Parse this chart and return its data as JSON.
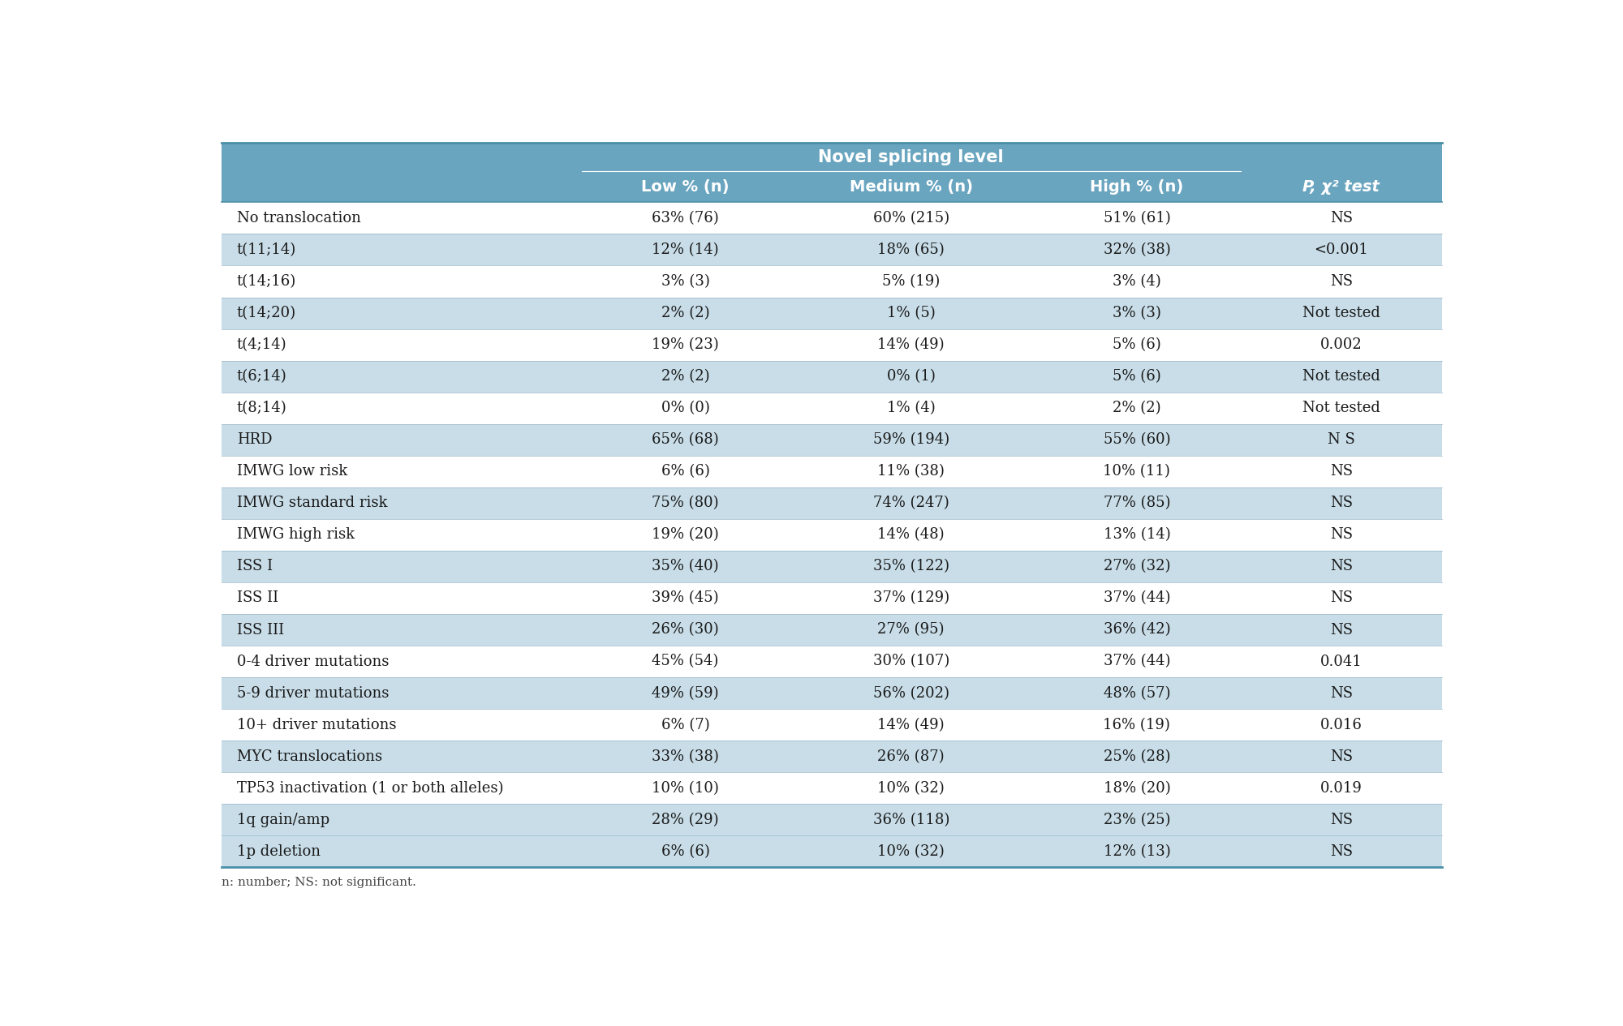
{
  "title": "Novel splicing level",
  "col_headers": [
    "Low % (n)",
    "Medium % (n)",
    "High % (n)",
    "P, χ² test"
  ],
  "rows": [
    [
      "No translocation",
      "63% (76)",
      "60% (215)",
      "51% (61)",
      "NS"
    ],
    [
      "t(11;14)",
      "12% (14)",
      "18% (65)",
      "32% (38)",
      "<0.001"
    ],
    [
      "t(14;16)",
      "3% (3)",
      "5% (19)",
      "3% (4)",
      "NS"
    ],
    [
      "t(14;20)",
      "2% (2)",
      "1% (5)",
      "3% (3)",
      "Not tested"
    ],
    [
      "t(4;14)",
      "19% (23)",
      "14% (49)",
      "5% (6)",
      "0.002"
    ],
    [
      "t(6;14)",
      "2% (2)",
      "0% (1)",
      "5% (6)",
      "Not tested"
    ],
    [
      "t(8;14)",
      "0% (0)",
      "1% (4)",
      "2% (2)",
      "Not tested"
    ],
    [
      "HRD",
      "65% (68)",
      "59% (194)",
      "55% (60)",
      "N S"
    ],
    [
      "IMWG low risk",
      "6% (6)",
      "11% (38)",
      "10% (11)",
      "NS"
    ],
    [
      "IMWG standard risk",
      "75% (80)",
      "74% (247)",
      "77% (85)",
      "NS"
    ],
    [
      "IMWG high risk",
      "19% (20)",
      "14% (48)",
      "13% (14)",
      "NS"
    ],
    [
      "ISS I",
      "35% (40)",
      "35% (122)",
      "27% (32)",
      "NS"
    ],
    [
      "ISS II",
      "39% (45)",
      "37% (129)",
      "37% (44)",
      "NS"
    ],
    [
      "ISS III",
      "26% (30)",
      "27% (95)",
      "36% (42)",
      "NS"
    ],
    [
      "0-4 driver mutations",
      "45% (54)",
      "30% (107)",
      "37% (44)",
      "0.041"
    ],
    [
      "5-9 driver mutations",
      "49% (59)",
      "56% (202)",
      "48% (57)",
      "NS"
    ],
    [
      "10+ driver mutations",
      "6% (7)",
      "14% (49)",
      "16% (19)",
      "0.016"
    ],
    [
      "MYC translocations",
      "33% (38)",
      "26% (87)",
      "25% (28)",
      "NS"
    ],
    [
      "TP53 inactivation (1 or both alleles)",
      "10% (10)",
      "10% (32)",
      "18% (20)",
      "0.019"
    ],
    [
      "1q gain/amp",
      "28% (29)",
      "36% (118)",
      "23% (25)",
      "NS"
    ],
    [
      "1p deletion",
      "6% (6)",
      "10% (32)",
      "12% (13)",
      "NS"
    ]
  ],
  "footer": "n: number; NS: not significant.",
  "header_bg": "#6aa5c0",
  "row_bg_dark": "#c8dde8",
  "row_bg_light": "#ffffff",
  "header_text_color": "#ffffff",
  "row_text_color": "#1a1a1a",
  "header_fontsize": 14,
  "row_fontsize": 13,
  "footer_fontsize": 11,
  "shaded_rows": [
    1,
    3,
    5,
    7,
    9,
    11,
    13,
    15,
    17,
    19,
    20
  ]
}
